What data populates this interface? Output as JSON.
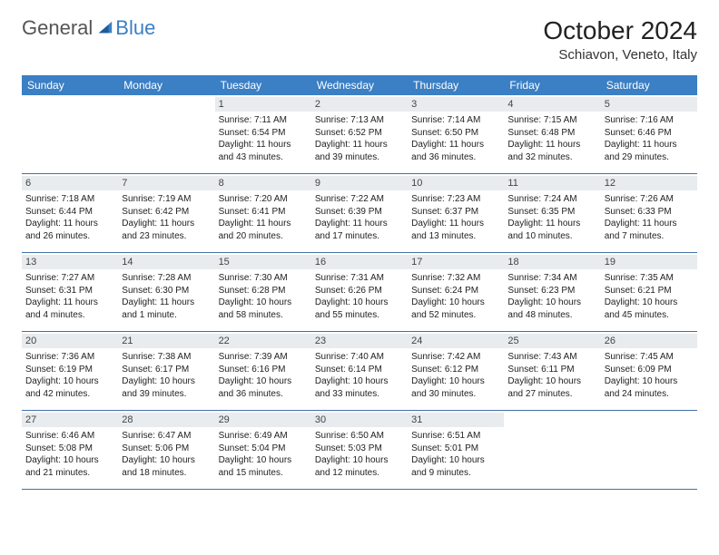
{
  "logo": {
    "general": "General",
    "blue": "Blue"
  },
  "title": "October 2024",
  "location": "Schiavon, Veneto, Italy",
  "colors": {
    "header_bg": "#3b7fc4",
    "header_text": "#ffffff",
    "daynum_bg": "#e8ecef",
    "row_border": "#4470a8",
    "text": "#222222"
  },
  "day_names": [
    "Sunday",
    "Monday",
    "Tuesday",
    "Wednesday",
    "Thursday",
    "Friday",
    "Saturday"
  ],
  "weeks": [
    [
      null,
      null,
      {
        "n": "1",
        "sr": "7:11 AM",
        "ss": "6:54 PM",
        "dl": "11 hours and 43 minutes."
      },
      {
        "n": "2",
        "sr": "7:13 AM",
        "ss": "6:52 PM",
        "dl": "11 hours and 39 minutes."
      },
      {
        "n": "3",
        "sr": "7:14 AM",
        "ss": "6:50 PM",
        "dl": "11 hours and 36 minutes."
      },
      {
        "n": "4",
        "sr": "7:15 AM",
        "ss": "6:48 PM",
        "dl": "11 hours and 32 minutes."
      },
      {
        "n": "5",
        "sr": "7:16 AM",
        "ss": "6:46 PM",
        "dl": "11 hours and 29 minutes."
      }
    ],
    [
      {
        "n": "6",
        "sr": "7:18 AM",
        "ss": "6:44 PM",
        "dl": "11 hours and 26 minutes."
      },
      {
        "n": "7",
        "sr": "7:19 AM",
        "ss": "6:42 PM",
        "dl": "11 hours and 23 minutes."
      },
      {
        "n": "8",
        "sr": "7:20 AM",
        "ss": "6:41 PM",
        "dl": "11 hours and 20 minutes."
      },
      {
        "n": "9",
        "sr": "7:22 AM",
        "ss": "6:39 PM",
        "dl": "11 hours and 17 minutes."
      },
      {
        "n": "10",
        "sr": "7:23 AM",
        "ss": "6:37 PM",
        "dl": "11 hours and 13 minutes."
      },
      {
        "n": "11",
        "sr": "7:24 AM",
        "ss": "6:35 PM",
        "dl": "11 hours and 10 minutes."
      },
      {
        "n": "12",
        "sr": "7:26 AM",
        "ss": "6:33 PM",
        "dl": "11 hours and 7 minutes."
      }
    ],
    [
      {
        "n": "13",
        "sr": "7:27 AM",
        "ss": "6:31 PM",
        "dl": "11 hours and 4 minutes."
      },
      {
        "n": "14",
        "sr": "7:28 AM",
        "ss": "6:30 PM",
        "dl": "11 hours and 1 minute."
      },
      {
        "n": "15",
        "sr": "7:30 AM",
        "ss": "6:28 PM",
        "dl": "10 hours and 58 minutes."
      },
      {
        "n": "16",
        "sr": "7:31 AM",
        "ss": "6:26 PM",
        "dl": "10 hours and 55 minutes."
      },
      {
        "n": "17",
        "sr": "7:32 AM",
        "ss": "6:24 PM",
        "dl": "10 hours and 52 minutes."
      },
      {
        "n": "18",
        "sr": "7:34 AM",
        "ss": "6:23 PM",
        "dl": "10 hours and 48 minutes."
      },
      {
        "n": "19",
        "sr": "7:35 AM",
        "ss": "6:21 PM",
        "dl": "10 hours and 45 minutes."
      }
    ],
    [
      {
        "n": "20",
        "sr": "7:36 AM",
        "ss": "6:19 PM",
        "dl": "10 hours and 42 minutes."
      },
      {
        "n": "21",
        "sr": "7:38 AM",
        "ss": "6:17 PM",
        "dl": "10 hours and 39 minutes."
      },
      {
        "n": "22",
        "sr": "7:39 AM",
        "ss": "6:16 PM",
        "dl": "10 hours and 36 minutes."
      },
      {
        "n": "23",
        "sr": "7:40 AM",
        "ss": "6:14 PM",
        "dl": "10 hours and 33 minutes."
      },
      {
        "n": "24",
        "sr": "7:42 AM",
        "ss": "6:12 PM",
        "dl": "10 hours and 30 minutes."
      },
      {
        "n": "25",
        "sr": "7:43 AM",
        "ss": "6:11 PM",
        "dl": "10 hours and 27 minutes."
      },
      {
        "n": "26",
        "sr": "7:45 AM",
        "ss": "6:09 PM",
        "dl": "10 hours and 24 minutes."
      }
    ],
    [
      {
        "n": "27",
        "sr": "6:46 AM",
        "ss": "5:08 PM",
        "dl": "10 hours and 21 minutes."
      },
      {
        "n": "28",
        "sr": "6:47 AM",
        "ss": "5:06 PM",
        "dl": "10 hours and 18 minutes."
      },
      {
        "n": "29",
        "sr": "6:49 AM",
        "ss": "5:04 PM",
        "dl": "10 hours and 15 minutes."
      },
      {
        "n": "30",
        "sr": "6:50 AM",
        "ss": "5:03 PM",
        "dl": "10 hours and 12 minutes."
      },
      {
        "n": "31",
        "sr": "6:51 AM",
        "ss": "5:01 PM",
        "dl": "10 hours and 9 minutes."
      },
      null,
      null
    ]
  ]
}
